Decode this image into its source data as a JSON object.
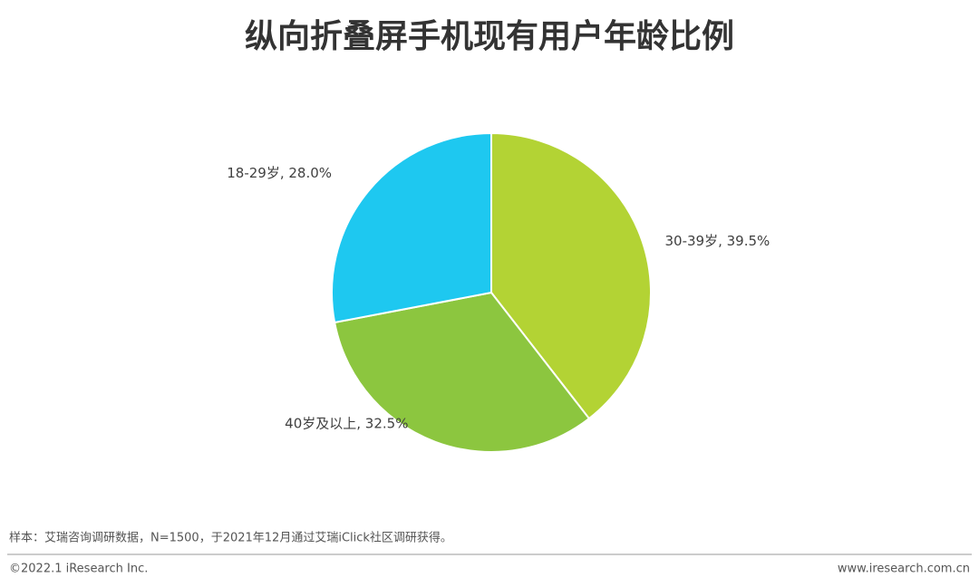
{
  "chart_data": {
    "type": "pie",
    "title": "纵向折叠屏手机现有用户年龄比例",
    "categories": [
      "30-39岁",
      "40岁及以上",
      "18-29岁"
    ],
    "values": [
      39.5,
      32.5,
      28.0
    ],
    "value_labels": [
      "39.5%",
      "32.5%",
      "28.0%"
    ],
    "label_separator": ", ",
    "colors": [
      "#b3d334",
      "#8cc63f",
      "#1ec8f0"
    ],
    "note": "样本：艾瑞咨询调研数据，N=1500，于2021年12月通过艾瑞iClick社区调研获得。"
  },
  "footer": {
    "copyright": "©2022.1 iResearch Inc.",
    "website": "www.iresearch.com.cn"
  }
}
